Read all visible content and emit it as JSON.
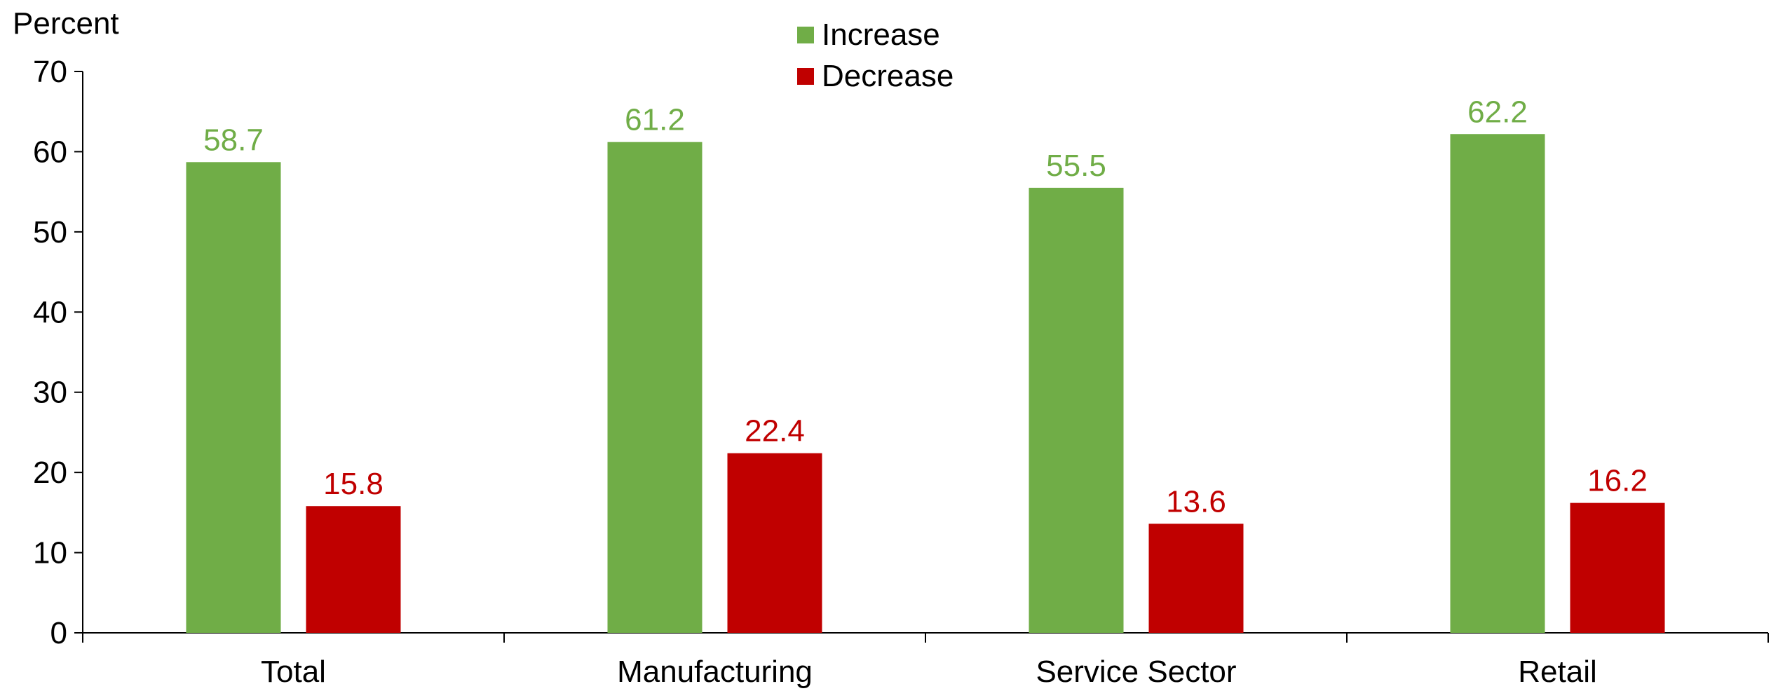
{
  "chart_data": {
    "type": "bar",
    "ylabel": "Percent",
    "ylim": [
      0,
      70
    ],
    "yticks": [
      0,
      10,
      20,
      30,
      40,
      50,
      60,
      70
    ],
    "categories": [
      "Total",
      "Manufacturing",
      "Service Sector",
      "Retail"
    ],
    "series": [
      {
        "name": "Increase",
        "color": "#70AD47",
        "values": [
          58.7,
          61.2,
          55.5,
          62.2
        ],
        "labels": [
          "58.7",
          "61.2",
          "55.5",
          "62.2"
        ]
      },
      {
        "name": "Decrease",
        "color": "#C00000",
        "values": [
          15.8,
          22.4,
          13.6,
          16.2
        ],
        "labels": [
          "15.8",
          "22.4",
          "13.6",
          "16.2"
        ]
      }
    ],
    "legend": "top-center",
    "grid": false
  }
}
